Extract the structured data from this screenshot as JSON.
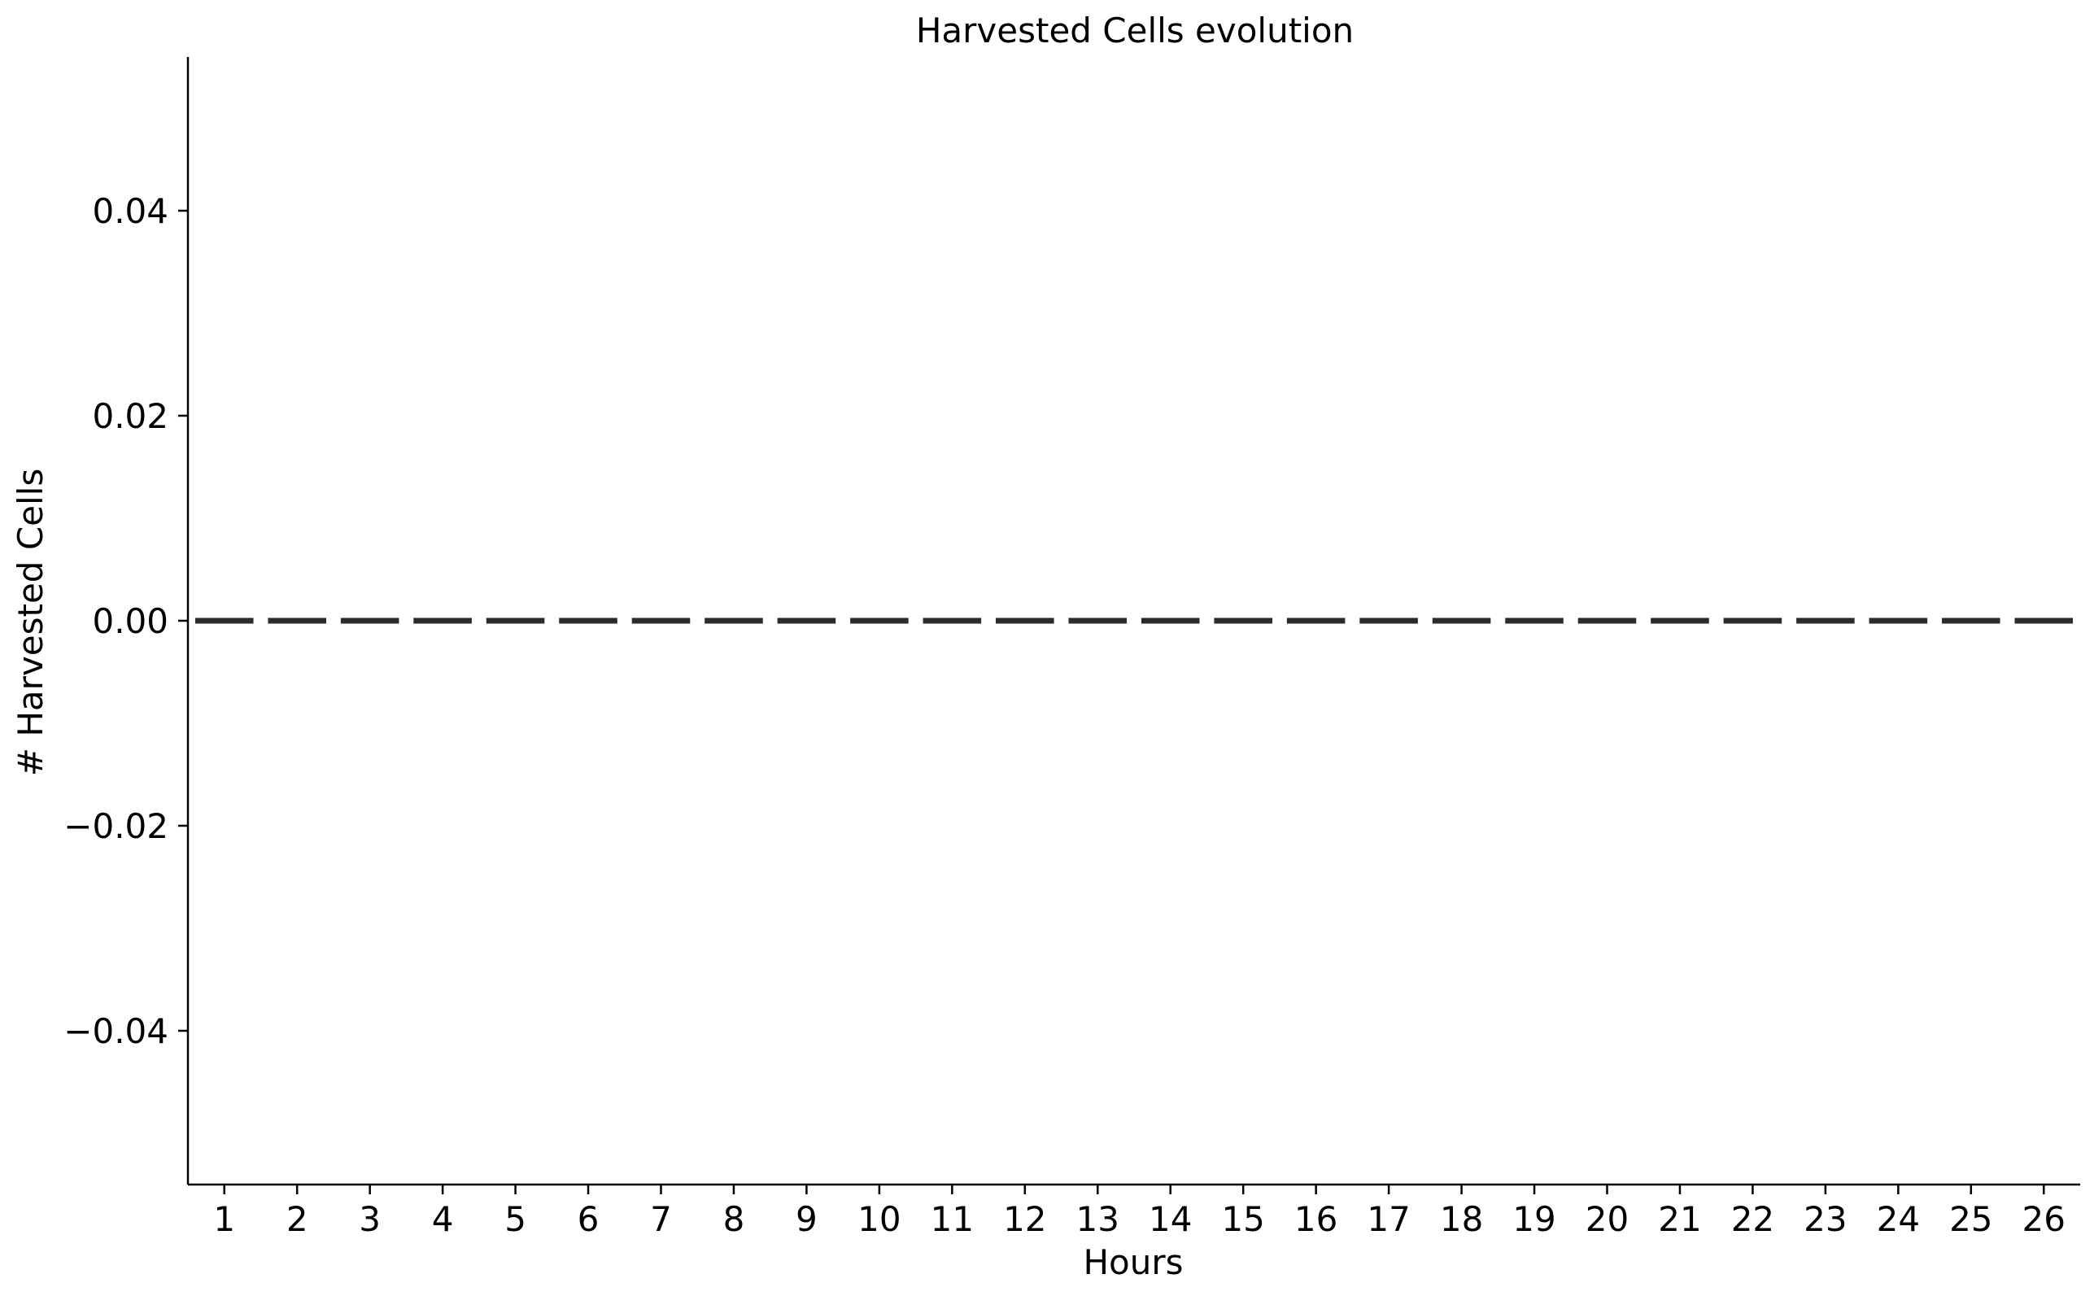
{
  "chart_data": {
    "type": "bar",
    "title": "Harvested Cells evolution",
    "xlabel": "Hours",
    "ylabel": "# Harvested Cells",
    "categories": [
      "1",
      "2",
      "3",
      "4",
      "5",
      "6",
      "7",
      "8",
      "9",
      "10",
      "11",
      "12",
      "13",
      "14",
      "15",
      "16",
      "17",
      "18",
      "19",
      "20",
      "21",
      "22",
      "23",
      "24",
      "25",
      "26"
    ],
    "values": [
      0,
      0,
      0,
      0,
      0,
      0,
      0,
      0,
      0,
      0,
      0,
      0,
      0,
      0,
      0,
      0,
      0,
      0,
      0,
      0,
      0,
      0,
      0,
      0,
      0,
      0
    ],
    "ylim": [
      -0.055,
      0.055
    ],
    "yticks": [
      "−0.04",
      "−0.02",
      "0.00",
      "0.02",
      "0.04"
    ],
    "ytick_values": [
      -0.04,
      -0.02,
      0.0,
      0.02,
      0.04
    ],
    "grid": false,
    "bar_color": "#2b2b2b"
  }
}
